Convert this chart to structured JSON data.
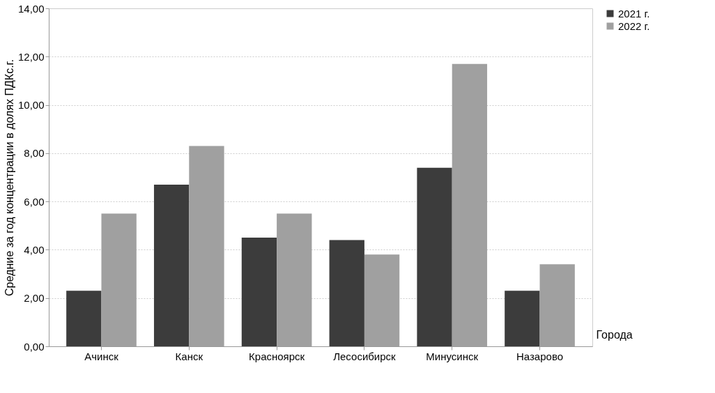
{
  "chart_data": {
    "type": "bar",
    "ylabel": "Средние за год концентрации в долях ПДКс.г.",
    "xlabel": "Города",
    "categories": [
      "Ачинск",
      "Канск",
      "Красноярск",
      "Лесосибирск",
      "Минусинск",
      "Назарово"
    ],
    "series": [
      {
        "name": "2021 г.",
        "color": "#3c3c3c",
        "values": [
          2.3,
          6.7,
          4.5,
          4.4,
          7.4,
          2.3
        ]
      },
      {
        "name": "2022 г.",
        "color": "#a0a0a0",
        "values": [
          5.5,
          8.3,
          5.5,
          3.8,
          11.7,
          3.4
        ]
      }
    ],
    "ylim": [
      0,
      14
    ],
    "yticks": [
      {
        "value": 0,
        "label": "0,00"
      },
      {
        "value": 2,
        "label": "2,00"
      },
      {
        "value": 4,
        "label": "4,00"
      },
      {
        "value": 6,
        "label": "6,00"
      },
      {
        "value": 8,
        "label": "8,00"
      },
      {
        "value": 10,
        "label": "10,00"
      },
      {
        "value": 12,
        "label": "12,00"
      },
      {
        "value": 14,
        "label": "14,00"
      }
    ],
    "grid": "y",
    "legend": "right"
  }
}
